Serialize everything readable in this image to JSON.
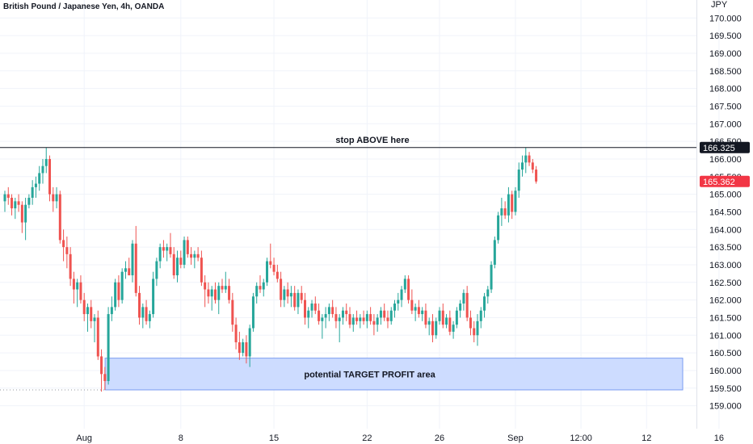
{
  "header": {
    "title": "British Pound / Japanese Yen, 4h, OANDA"
  },
  "colors": {
    "up": "#26a69a",
    "down": "#ef5350",
    "grid": "#f0f3fa",
    "zone_fill": "#cddcff",
    "zone_border": "#7b9cf0",
    "line": "#131722",
    "last_price_bg": "#f23645",
    "level_bg": "#131722"
  },
  "chart_data": {
    "type": "candlestick",
    "title": "British Pound / Japanese Yen, 4h, OANDA",
    "currency_label": "JPY",
    "ylim": [
      158.35,
      170.35
    ],
    "y_ticks": [
      "170.000",
      "169.500",
      "169.000",
      "168.500",
      "168.000",
      "167.500",
      "167.000",
      "166.500",
      "166.000",
      "165.500",
      "165.000",
      "164.500",
      "164.000",
      "163.500",
      "163.000",
      "162.500",
      "162.000",
      "161.500",
      "161.000",
      "160.500",
      "160.000",
      "159.500",
      "159.000"
    ],
    "x_ticks": [
      {
        "label": "Aug",
        "bar": 23
      },
      {
        "label": "8",
        "bar": 51
      },
      {
        "label": "15",
        "bar": 78
      },
      {
        "label": "22",
        "bar": 105
      },
      {
        "label": "26",
        "bar": 126
      },
      {
        "label": "Sep",
        "bar": 148
      },
      {
        "label": "12:00",
        "bar": 167
      },
      {
        "label": "12",
        "bar": 186
      },
      {
        "label": "16",
        "bar": 207
      }
    ],
    "grid": true,
    "candles": [
      [
        164.8,
        165.1,
        164.5,
        165.0
      ],
      [
        165.0,
        165.2,
        164.7,
        164.9
      ],
      [
        164.9,
        165.0,
        164.4,
        164.6
      ],
      [
        164.6,
        164.9,
        164.3,
        164.8
      ],
      [
        164.8,
        165.0,
        164.5,
        164.7
      ],
      [
        164.7,
        164.8,
        163.9,
        164.2
      ],
      [
        164.2,
        164.9,
        163.7,
        164.7
      ],
      [
        164.7,
        165.0,
        164.6,
        164.9
      ],
      [
        164.9,
        165.4,
        164.7,
        165.2
      ],
      [
        165.2,
        165.5,
        164.9,
        165.3
      ],
      [
        165.3,
        165.8,
        165.1,
        165.6
      ],
      [
        165.6,
        166.0,
        165.3,
        165.8
      ],
      [
        165.8,
        166.325,
        165.6,
        166.0
      ],
      [
        166.0,
        166.1,
        164.8,
        165.0
      ],
      [
        165.0,
        165.2,
        164.5,
        164.8
      ],
      [
        164.8,
        165.2,
        164.6,
        165.0
      ],
      [
        165.0,
        165.1,
        163.6,
        163.7
      ],
      [
        163.7,
        164.0,
        163.1,
        163.5
      ],
      [
        163.5,
        163.8,
        162.9,
        163.3
      ],
      [
        163.3,
        163.5,
        162.4,
        162.6
      ],
      [
        162.6,
        162.8,
        161.9,
        162.3
      ],
      [
        162.3,
        162.6,
        161.8,
        162.5
      ],
      [
        162.5,
        162.7,
        161.9,
        162.0
      ],
      [
        162.0,
        162.2,
        161.4,
        161.6
      ],
      [
        161.6,
        161.9,
        161.1,
        161.8
      ],
      [
        161.8,
        162.0,
        161.2,
        161.4
      ],
      [
        161.4,
        161.6,
        160.8,
        161.5
      ],
      [
        161.5,
        161.7,
        160.3,
        160.4
      ],
      [
        160.4,
        160.6,
        159.4,
        159.9
      ],
      [
        159.9,
        160.1,
        159.45,
        159.7
      ],
      [
        159.7,
        161.8,
        159.6,
        161.6
      ],
      [
        161.6,
        162.1,
        161.4,
        161.8
      ],
      [
        161.8,
        162.6,
        161.7,
        162.5
      ],
      [
        162.5,
        162.7,
        161.8,
        162.0
      ],
      [
        162.0,
        162.9,
        161.9,
        162.8
      ],
      [
        162.8,
        163.1,
        162.6,
        162.9
      ],
      [
        162.9,
        163.2,
        162.7,
        162.7
      ],
      [
        162.7,
        163.7,
        162.5,
        163.6
      ],
      [
        163.6,
        164.1,
        162.1,
        162.2
      ],
      [
        162.2,
        162.4,
        161.3,
        161.5
      ],
      [
        161.5,
        161.9,
        161.2,
        161.8
      ],
      [
        161.8,
        162.0,
        161.3,
        161.4
      ],
      [
        161.4,
        161.7,
        161.2,
        161.6
      ],
      [
        161.6,
        162.8,
        161.5,
        162.6
      ],
      [
        162.6,
        163.2,
        162.4,
        163.1
      ],
      [
        163.1,
        163.6,
        162.9,
        163.5
      ],
      [
        163.5,
        163.7,
        163.2,
        163.4
      ],
      [
        163.4,
        163.6,
        163.1,
        163.5
      ],
      [
        163.5,
        163.9,
        163.2,
        163.3
      ],
      [
        163.3,
        163.5,
        162.6,
        162.7
      ],
      [
        162.7,
        163.4,
        162.5,
        163.2
      ],
      [
        163.2,
        163.4,
        162.9,
        163.0
      ],
      [
        163.0,
        163.8,
        162.9,
        163.7
      ],
      [
        163.7,
        163.8,
        163.2,
        163.3
      ],
      [
        163.3,
        163.5,
        163.0,
        163.2
      ],
      [
        163.2,
        163.4,
        162.9,
        163.3
      ],
      [
        163.3,
        163.5,
        163.1,
        163.2
      ],
      [
        163.2,
        163.4,
        162.4,
        162.5
      ],
      [
        162.5,
        162.7,
        161.8,
        162.3
      ],
      [
        162.3,
        162.5,
        161.9,
        162.1
      ],
      [
        162.1,
        162.4,
        161.7,
        162.3
      ],
      [
        162.3,
        162.5,
        161.9,
        162.0
      ],
      [
        162.0,
        162.5,
        161.6,
        162.4
      ],
      [
        162.4,
        162.6,
        162.2,
        162.3
      ],
      [
        162.3,
        162.8,
        162.2,
        162.4
      ],
      [
        162.4,
        162.6,
        161.9,
        162.0
      ],
      [
        162.0,
        162.2,
        161.1,
        161.3
      ],
      [
        161.3,
        161.5,
        160.6,
        160.8
      ],
      [
        160.8,
        161.1,
        160.3,
        160.5
      ],
      [
        160.5,
        160.9,
        160.4,
        160.8
      ],
      [
        160.8,
        161.0,
        160.2,
        160.4
      ],
      [
        160.4,
        161.3,
        160.1,
        161.2
      ],
      [
        161.2,
        162.2,
        161.1,
        162.1
      ],
      [
        162.1,
        162.5,
        161.9,
        162.4
      ],
      [
        162.4,
        162.7,
        162.2,
        162.3
      ],
      [
        162.3,
        162.6,
        162.1,
        162.5
      ],
      [
        162.5,
        163.2,
        162.4,
        163.1
      ],
      [
        163.1,
        163.6,
        162.9,
        163.0
      ],
      [
        163.0,
        163.2,
        162.7,
        162.8
      ],
      [
        162.8,
        163.0,
        162.5,
        162.6
      ],
      [
        162.6,
        162.8,
        161.8,
        162.0
      ],
      [
        162.0,
        162.4,
        161.8,
        162.3
      ],
      [
        162.3,
        162.5,
        161.9,
        162.1
      ],
      [
        162.1,
        162.4,
        161.8,
        162.2
      ],
      [
        162.2,
        162.4,
        161.7,
        161.8
      ],
      [
        161.8,
        162.3,
        161.6,
        162.2
      ],
      [
        162.2,
        162.4,
        161.9,
        162.0
      ],
      [
        162.0,
        162.2,
        161.3,
        161.5
      ],
      [
        161.5,
        161.8,
        161.2,
        161.7
      ],
      [
        161.7,
        162.0,
        161.5,
        161.9
      ],
      [
        161.9,
        162.1,
        161.6,
        161.7
      ],
      [
        161.7,
        161.9,
        161.3,
        161.4
      ],
      [
        161.4,
        161.6,
        160.9,
        161.5
      ],
      [
        161.5,
        161.8,
        161.2,
        161.6
      ],
      [
        161.6,
        161.9,
        161.4,
        161.8
      ],
      [
        161.8,
        162.0,
        161.5,
        161.6
      ],
      [
        161.6,
        161.8,
        161.2,
        161.4
      ],
      [
        161.4,
        161.6,
        160.8,
        161.5
      ],
      [
        161.5,
        161.8,
        161.3,
        161.7
      ],
      [
        161.7,
        161.9,
        161.4,
        161.6
      ],
      [
        161.6,
        161.8,
        161.2,
        161.3
      ],
      [
        161.3,
        161.6,
        161.1,
        161.5
      ],
      [
        161.5,
        161.7,
        161.3,
        161.4
      ],
      [
        161.4,
        161.6,
        161.2,
        161.5
      ],
      [
        161.5,
        161.7,
        161.3,
        161.4
      ],
      [
        161.4,
        161.7,
        161.2,
        161.6
      ],
      [
        161.6,
        161.8,
        161.3,
        161.4
      ],
      [
        161.4,
        161.6,
        161.0,
        161.3
      ],
      [
        161.3,
        161.6,
        161.1,
        161.5
      ],
      [
        161.5,
        161.8,
        161.3,
        161.7
      ],
      [
        161.7,
        161.9,
        161.4,
        161.5
      ],
      [
        161.5,
        161.7,
        161.2,
        161.4
      ],
      [
        161.4,
        161.8,
        161.3,
        161.7
      ],
      [
        161.7,
        162.0,
        161.5,
        161.9
      ],
      [
        161.9,
        162.2,
        161.7,
        162.0
      ],
      [
        162.0,
        162.4,
        161.8,
        162.3
      ],
      [
        162.3,
        162.7,
        162.2,
        162.6
      ],
      [
        162.6,
        162.7,
        161.9,
        162.0
      ],
      [
        162.0,
        162.3,
        161.6,
        161.7
      ],
      [
        161.7,
        161.9,
        161.4,
        161.8
      ],
      [
        161.8,
        162.0,
        161.5,
        161.6
      ],
      [
        161.6,
        161.8,
        161.4,
        161.7
      ],
      [
        161.7,
        161.9,
        161.2,
        161.3
      ],
      [
        161.3,
        161.5,
        161.0,
        161.4
      ],
      [
        161.4,
        161.6,
        160.8,
        161.0
      ],
      [
        161.0,
        161.5,
        160.9,
        161.4
      ],
      [
        161.4,
        161.8,
        161.3,
        161.7
      ],
      [
        161.7,
        161.9,
        161.2,
        161.3
      ],
      [
        161.3,
        161.6,
        161.2,
        161.5
      ],
      [
        161.5,
        161.7,
        161.0,
        161.1
      ],
      [
        161.1,
        161.4,
        160.9,
        161.3
      ],
      [
        161.3,
        161.8,
        161.2,
        161.7
      ],
      [
        161.7,
        162.0,
        161.5,
        161.9
      ],
      [
        161.9,
        162.3,
        161.7,
        162.2
      ],
      [
        162.2,
        162.4,
        161.4,
        161.5
      ],
      [
        161.5,
        161.7,
        161.0,
        161.2
      ],
      [
        161.2,
        161.4,
        160.8,
        161.0
      ],
      [
        161.0,
        161.6,
        160.7,
        161.4
      ],
      [
        161.4,
        161.8,
        161.2,
        161.7
      ],
      [
        161.7,
        162.2,
        161.5,
        162.1
      ],
      [
        162.1,
        162.4,
        161.9,
        162.3
      ],
      [
        162.3,
        163.1,
        162.2,
        163.0
      ],
      [
        163.0,
        163.8,
        162.9,
        163.7
      ],
      [
        163.7,
        164.5,
        163.6,
        164.4
      ],
      [
        164.4,
        164.9,
        164.1,
        164.6
      ],
      [
        164.6,
        164.8,
        164.3,
        164.4
      ],
      [
        164.4,
        165.2,
        164.2,
        165.0
      ],
      [
        165.0,
        165.1,
        164.3,
        164.5
      ],
      [
        164.5,
        165.2,
        164.4,
        165.1
      ],
      [
        165.1,
        165.9,
        164.9,
        165.7
      ],
      [
        165.7,
        166.1,
        165.5,
        165.9
      ],
      [
        165.9,
        166.325,
        165.6,
        166.1
      ],
      [
        166.1,
        166.2,
        165.8,
        165.9
      ],
      [
        165.9,
        166.0,
        165.6,
        165.7
      ],
      [
        165.7,
        165.8,
        165.3,
        165.362
      ]
    ],
    "annotations": [
      {
        "type": "horizontal_line",
        "price": 166.325,
        "label": "stop ABOVE here",
        "price_label": "166.325"
      },
      {
        "type": "rectangle",
        "price_top": 160.35,
        "price_bottom": 159.45,
        "label": "potential TARGET PROFIT area"
      }
    ],
    "last_price": {
      "value": 165.362,
      "label": "165.362"
    }
  }
}
